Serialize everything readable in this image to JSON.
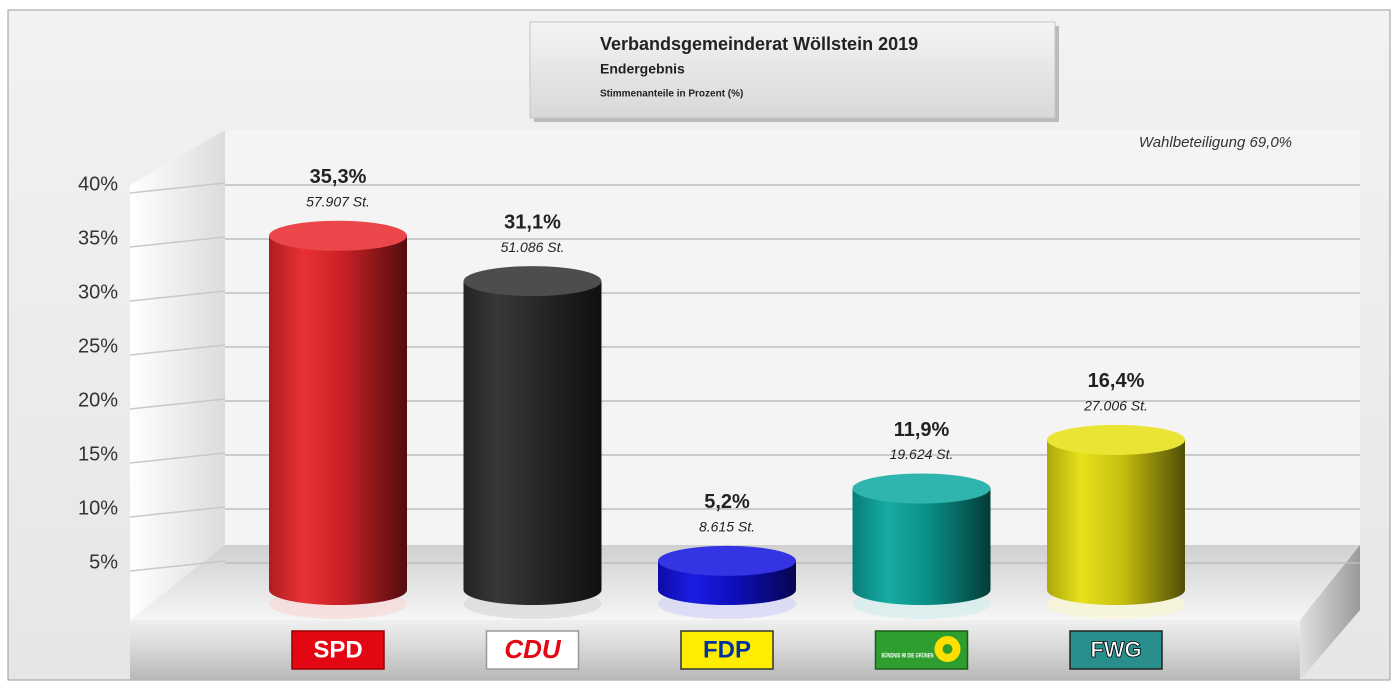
{
  "chart_data": {
    "type": "bar",
    "title": "Verbandsgemeinderat Wöllstein 2019",
    "subtitle": "Endergebnis",
    "axis_label": "Stimmenanteile in Prozent (%)",
    "annotation": "Wahlbeteiligung 69,0%",
    "categories": [
      "SPD",
      "CDU",
      "FDP",
      "BÜNDNIS 90 DIE GRÜNEN",
      "FWG"
    ],
    "values": [
      35.3,
      31.1,
      5.2,
      11.9,
      16.4
    ],
    "value_labels": [
      "35,3%",
      "31,1%",
      "5,2%",
      "11,9%",
      "16,4%"
    ],
    "vote_labels": [
      "57.907 St.",
      "51.086 St.",
      "8.615 St.",
      "19.624 St.",
      "27.006 St."
    ],
    "colors": [
      "#e8262a",
      "#2e2e2e",
      "#1010e0",
      "#0aa89e",
      "#e6e010"
    ],
    "ylim": [
      0,
      45
    ],
    "yticks": [
      {
        "value": 5,
        "label": "5%"
      },
      {
        "value": 10,
        "label": "10%"
      },
      {
        "value": 15,
        "label": "15%"
      },
      {
        "value": 20,
        "label": "20%"
      },
      {
        "value": 25,
        "label": "25%"
      },
      {
        "value": 30,
        "label": "30%"
      },
      {
        "value": 35,
        "label": "35%"
      },
      {
        "value": 40,
        "label": "40%"
      }
    ],
    "grid": true
  }
}
